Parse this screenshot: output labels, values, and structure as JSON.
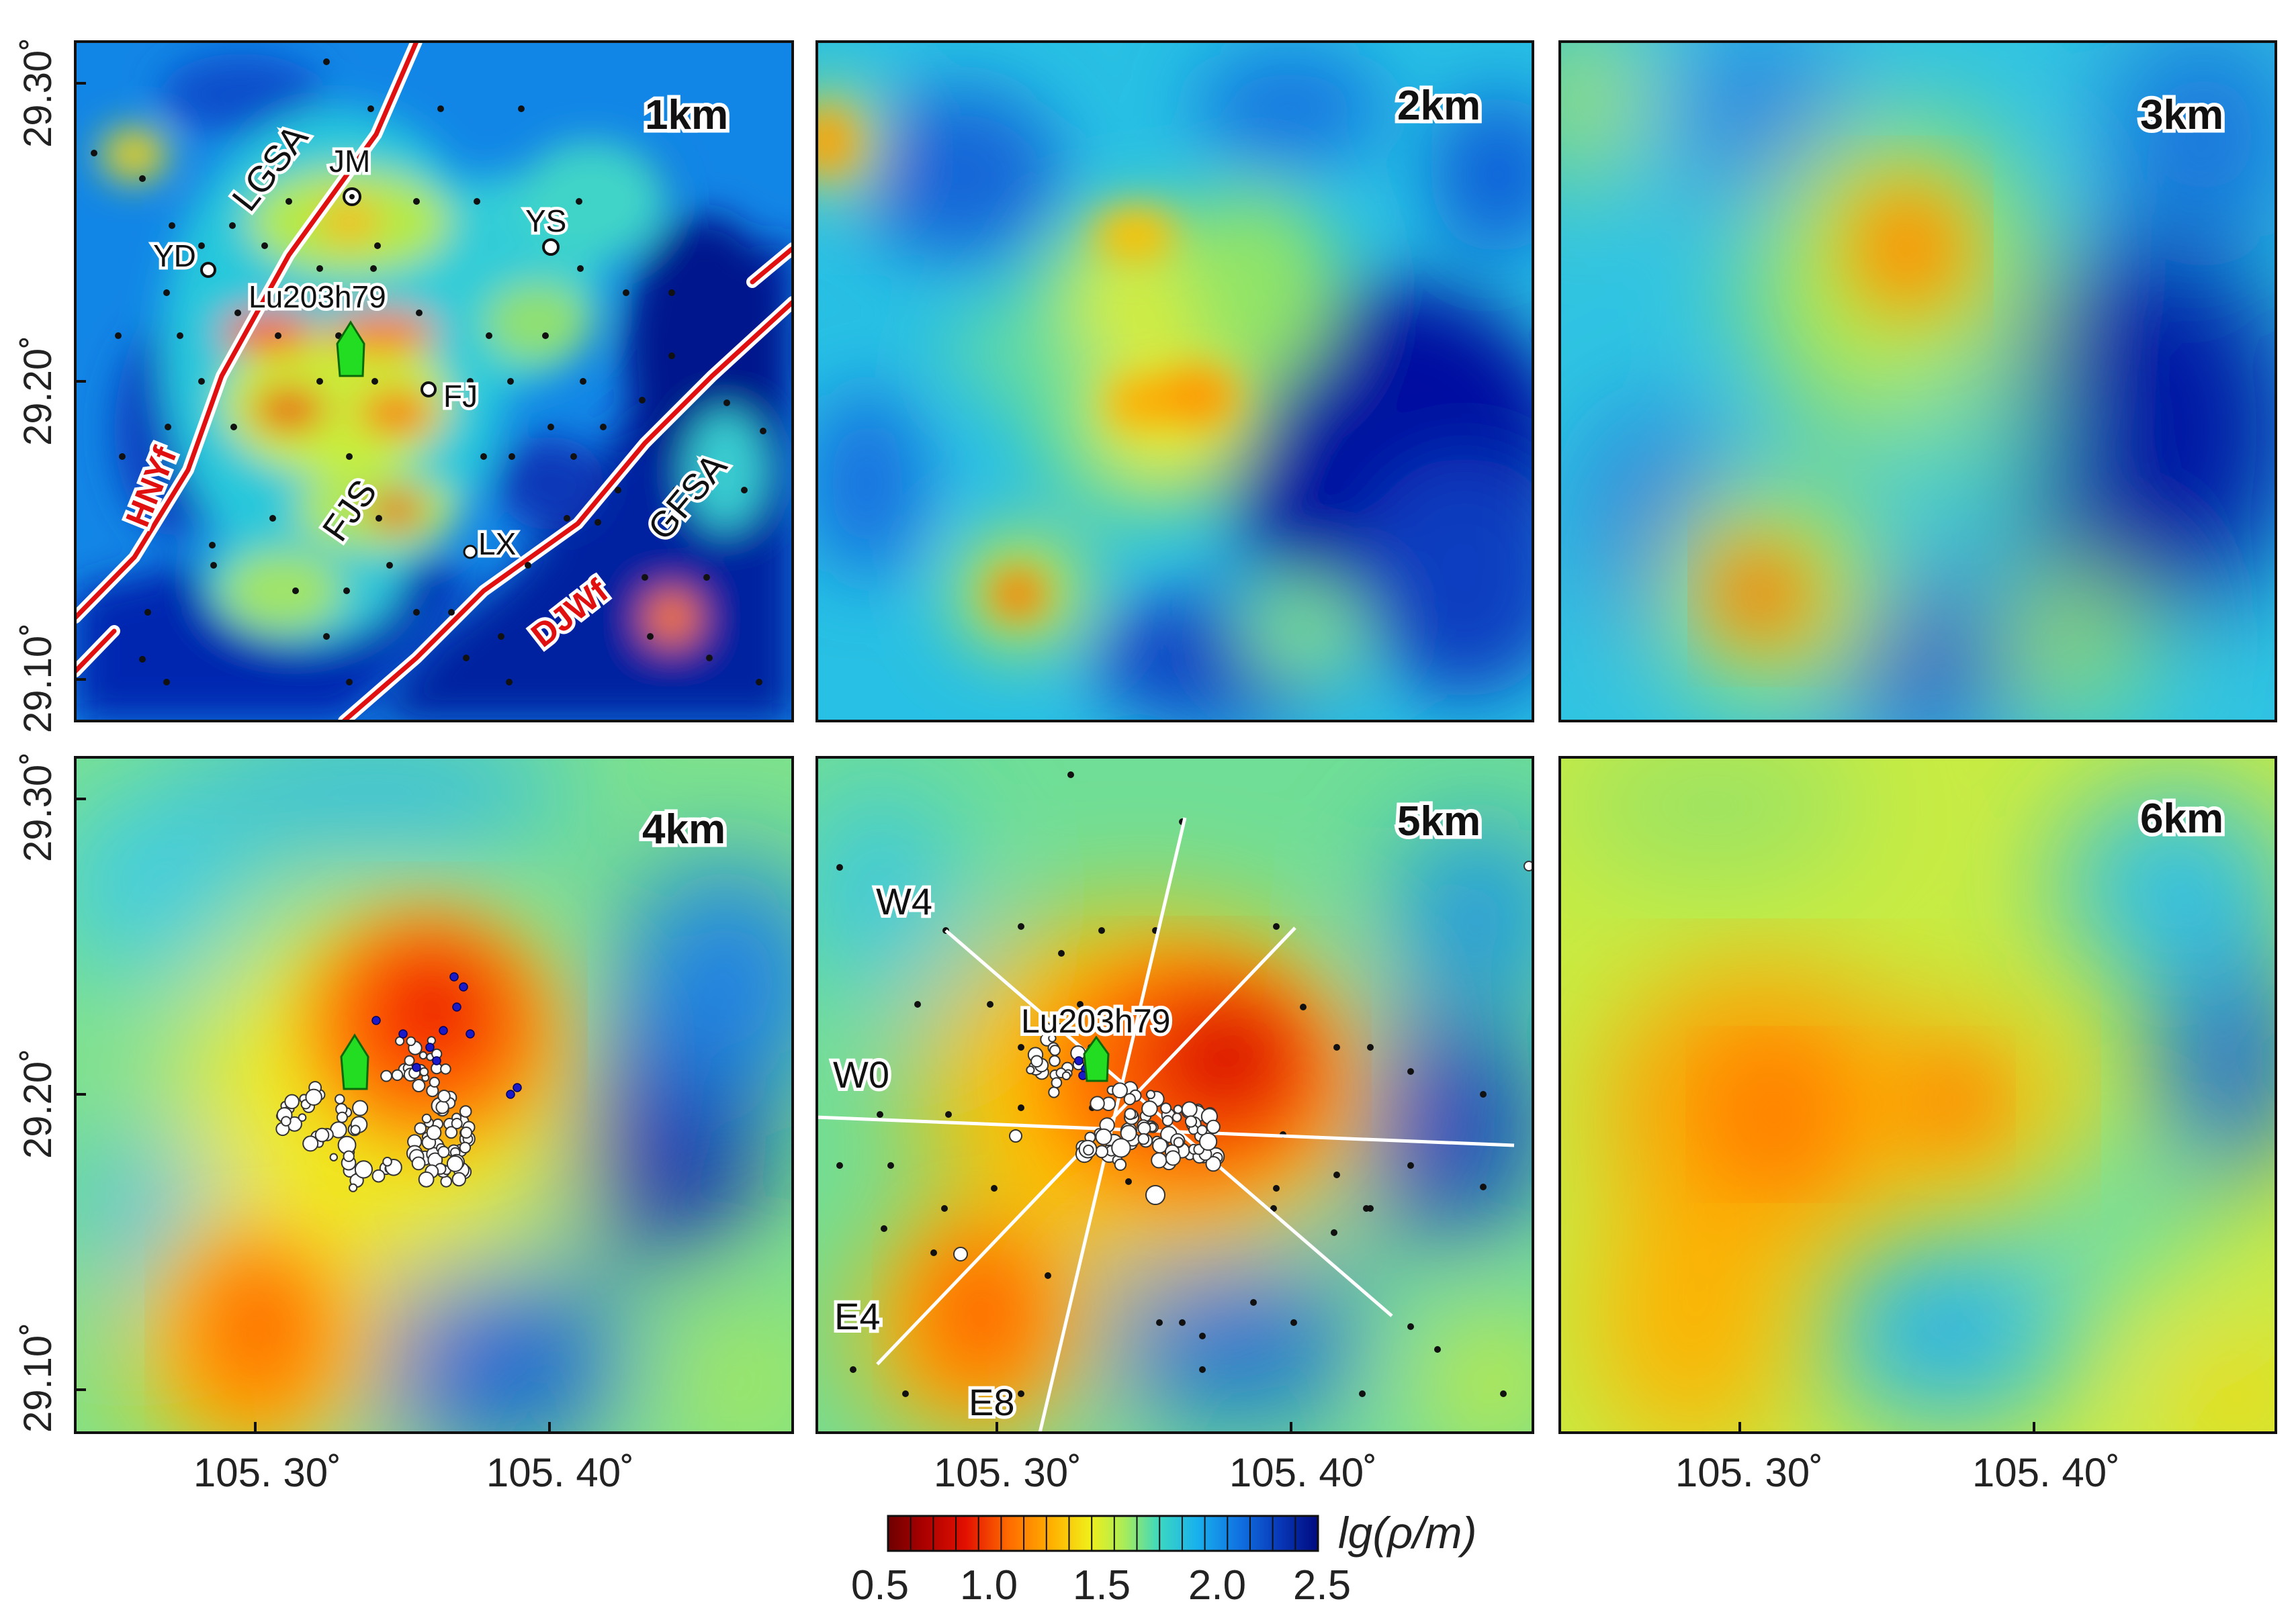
{
  "panels": [
    {
      "depth": "1km"
    },
    {
      "depth": "2km"
    },
    {
      "depth": "3km"
    },
    {
      "depth": "4km"
    },
    {
      "depth": "5km"
    },
    {
      "depth": "6km"
    }
  ],
  "axes": {
    "lon_ticks": [
      "105. 30˚",
      "105. 40˚"
    ],
    "lat_ticks": [
      "29.30˚",
      "29.20˚",
      "29.10˚"
    ]
  },
  "panel1_labels": {
    "stations": [
      "JM",
      "YS",
      "YD",
      "FJ",
      "LX"
    ],
    "well": "Lu203h79",
    "structures": [
      "LGSA",
      "FJS",
      "GFSA"
    ],
    "faults": [
      "HNYf",
      "DJWf"
    ]
  },
  "panel5_labels": {
    "well": "Lu203h79",
    "profiles": [
      "W4",
      "W0",
      "E4",
      "E8"
    ]
  },
  "colorbar": {
    "title": "lg(ρ/m)",
    "ticks": [
      "0.5",
      "1.0",
      "1.5",
      "2.0",
      "2.5"
    ],
    "colors": [
      "#7a0000",
      "#a80000",
      "#d40000",
      "#ee2a00",
      "#ff5a00",
      "#ff8400",
      "#ffaa00",
      "#ffd000",
      "#f2ef1a",
      "#c8ef3a",
      "#8ee87a",
      "#48dcb2",
      "#1ec8e0",
      "#18a8ee",
      "#1486e8",
      "#1064d8",
      "#0a44c4",
      "#0626a8",
      "#00108a"
    ]
  }
}
